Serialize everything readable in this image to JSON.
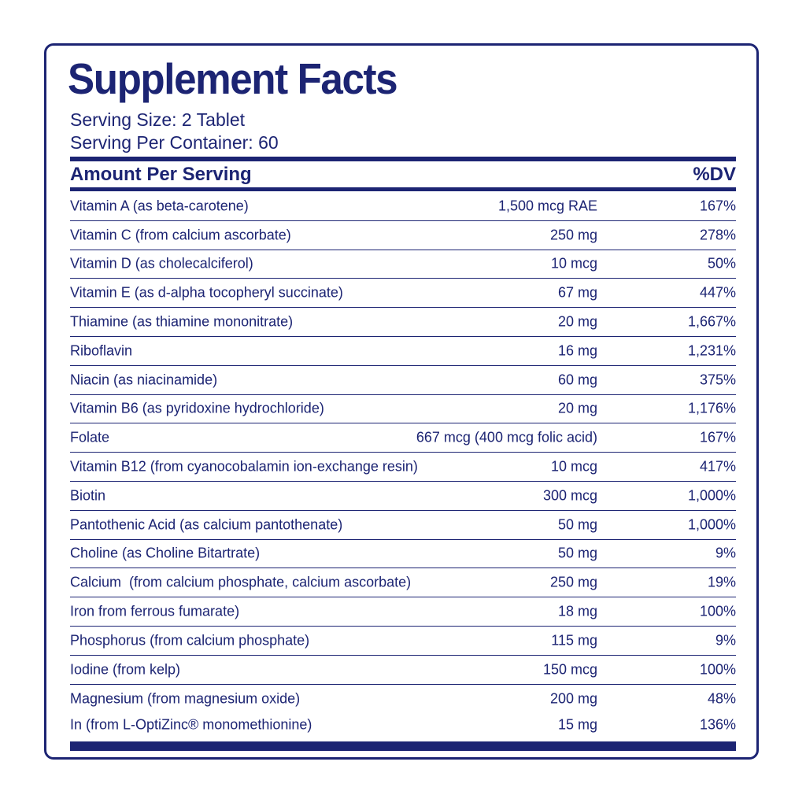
{
  "header": {
    "title": "Supplement Facts",
    "serving_size": "Serving Size: 2 Tablet",
    "servings_per_container": "Serving Per Container: 60"
  },
  "table": {
    "columns": [
      "Amount Per Serving",
      "%DV"
    ],
    "rows": [
      [
        "Vitamin A (as beta-carotene)",
        "1,500 mcg RAE",
        "167%"
      ],
      [
        "Vitamin C (from calcium ascorbate)",
        "250 mg",
        "278%"
      ],
      [
        "Vitamin D (as cholecalciferol)",
        "10 mcg",
        "50%"
      ],
      [
        "Vitamin E (as d-alpha tocopheryl succinate)",
        "67 mg",
        "447%"
      ],
      [
        "Thiamine (as thiamine mononitrate)",
        "20 mg",
        "1,667%"
      ],
      [
        "Riboflavin",
        "16 mg",
        "1,231%"
      ],
      [
        "Niacin (as niacinamide)",
        "60 mg",
        "375%"
      ],
      [
        "Vitamin B6 (as pyridoxine hydrochloride)",
        "20 mg",
        "1,176%"
      ],
      [
        "Folate",
        "667 mcg (400 mcg folic acid)",
        "167%"
      ],
      [
        "Vitamin B12 (from cyanocobalamin ion-exchange resin)",
        "10 mcg",
        "417%"
      ],
      [
        "Biotin",
        "300 mcg",
        "1,000%"
      ],
      [
        "Pantothenic Acid (as calcium pantothenate)",
        "50 mg",
        "1,000%"
      ],
      [
        "Choline (as Choline Bitartrate)",
        "50 mg",
        "9%"
      ],
      [
        "Calcium  (from calcium phosphate, calcium ascorbate)",
        "250 mg",
        "19%"
      ],
      [
        "Iron from ferrous fumarate)",
        "18 mg",
        "100%"
      ],
      [
        "Phosphorus (from calcium phosphate)",
        "115 mg",
        "9%"
      ],
      [
        "Iodine (from kelp)",
        "150 mcg",
        "100%"
      ],
      [
        "Magnesium (from magnesium oxide)",
        "200 mg",
        "48%"
      ],
      [
        "In (from L-OptiZinc® monomethionine)",
        "15 mg",
        "136%"
      ]
    ]
  }
}
